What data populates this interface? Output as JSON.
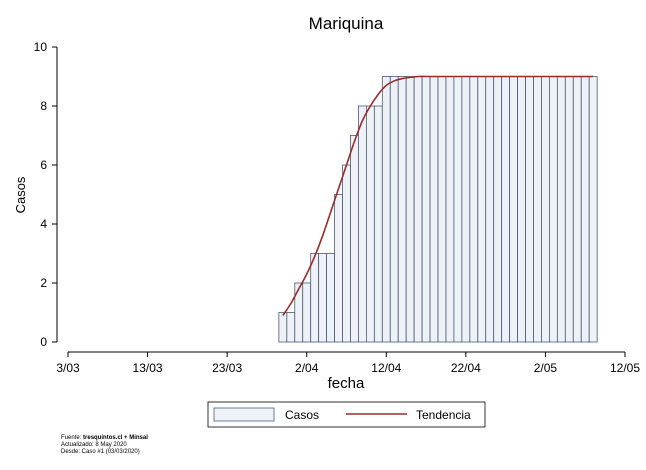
{
  "chart_data": {
    "type": "bar",
    "title": "Mariquina",
    "xlabel": "fecha",
    "ylabel": "Casos",
    "ylim": [
      0,
      10
    ],
    "yticks": [
      "0",
      "2",
      "4",
      "6",
      "8",
      "10"
    ],
    "xlim": [
      "2020-03-03",
      "2020-05-12"
    ],
    "xticks": [
      "3/03",
      "13/03",
      "23/03",
      "2/04",
      "12/04",
      "22/04",
      "2/05",
      "12/05"
    ],
    "grid": false,
    "legend_position": "bottom",
    "series": [
      {
        "name": "Casos",
        "kind": "bar",
        "color": "#eef2f6",
        "edge_color": "#4a5a78",
        "x": [
          "2020-03-30",
          "2020-03-31",
          "2020-04-01",
          "2020-04-02",
          "2020-04-03",
          "2020-04-04",
          "2020-04-05",
          "2020-04-06",
          "2020-04-07",
          "2020-04-08",
          "2020-04-09",
          "2020-04-10",
          "2020-04-11",
          "2020-04-12",
          "2020-04-13",
          "2020-04-14",
          "2020-04-15",
          "2020-04-16",
          "2020-04-17",
          "2020-04-18",
          "2020-04-19",
          "2020-04-20",
          "2020-04-21",
          "2020-04-22",
          "2020-04-23",
          "2020-04-24",
          "2020-04-25",
          "2020-04-26",
          "2020-04-27",
          "2020-04-28",
          "2020-04-29",
          "2020-04-30",
          "2020-05-01",
          "2020-05-02",
          "2020-05-03",
          "2020-05-04",
          "2020-05-05",
          "2020-05-06",
          "2020-05-07",
          "2020-05-08"
        ],
        "values": [
          1,
          1,
          2,
          2,
          3,
          3,
          3,
          5,
          6,
          7,
          8,
          8,
          8,
          9,
          9,
          9,
          9,
          9,
          9,
          9,
          9,
          9,
          9,
          9,
          9,
          9,
          9,
          9,
          9,
          9,
          9,
          9,
          9,
          9,
          9,
          9,
          9,
          9,
          9,
          9
        ]
      },
      {
        "name": "Tendencia",
        "kind": "line",
        "color": "#9b2c2c",
        "x": [
          "2020-03-30",
          "2020-03-31",
          "2020-04-01",
          "2020-04-02",
          "2020-04-03",
          "2020-04-04",
          "2020-04-05",
          "2020-04-06",
          "2020-04-07",
          "2020-04-08",
          "2020-04-09",
          "2020-04-10",
          "2020-04-11",
          "2020-04-12",
          "2020-04-13",
          "2020-04-14",
          "2020-04-15",
          "2020-04-16",
          "2020-04-17",
          "2020-04-18",
          "2020-04-19",
          "2020-04-20",
          "2020-04-21",
          "2020-04-22",
          "2020-04-23",
          "2020-04-24",
          "2020-04-25",
          "2020-04-26",
          "2020-04-27",
          "2020-04-28",
          "2020-04-29",
          "2020-04-30",
          "2020-05-01",
          "2020-05-02",
          "2020-05-03",
          "2020-05-04",
          "2020-05-05",
          "2020-05-06",
          "2020-05-07",
          "2020-05-08"
        ],
        "values": [
          0.9,
          1.3,
          1.8,
          2.3,
          2.9,
          3.6,
          4.4,
          5.2,
          6.0,
          6.8,
          7.5,
          8.0,
          8.4,
          8.7,
          8.85,
          8.93,
          8.97,
          9,
          9,
          9,
          9,
          9,
          9,
          9,
          9,
          9,
          9,
          9,
          9,
          9,
          9,
          9,
          9,
          9,
          9,
          9,
          9,
          9,
          9,
          9
        ]
      }
    ]
  },
  "source": {
    "line1_prefix": "Fuente:",
    "line1_bold": "tresquintos.cl + Minsal",
    "line2": "Actualizado: 8 May 2020",
    "line3": "Desde: Caso #1  (03/03/2020)"
  }
}
